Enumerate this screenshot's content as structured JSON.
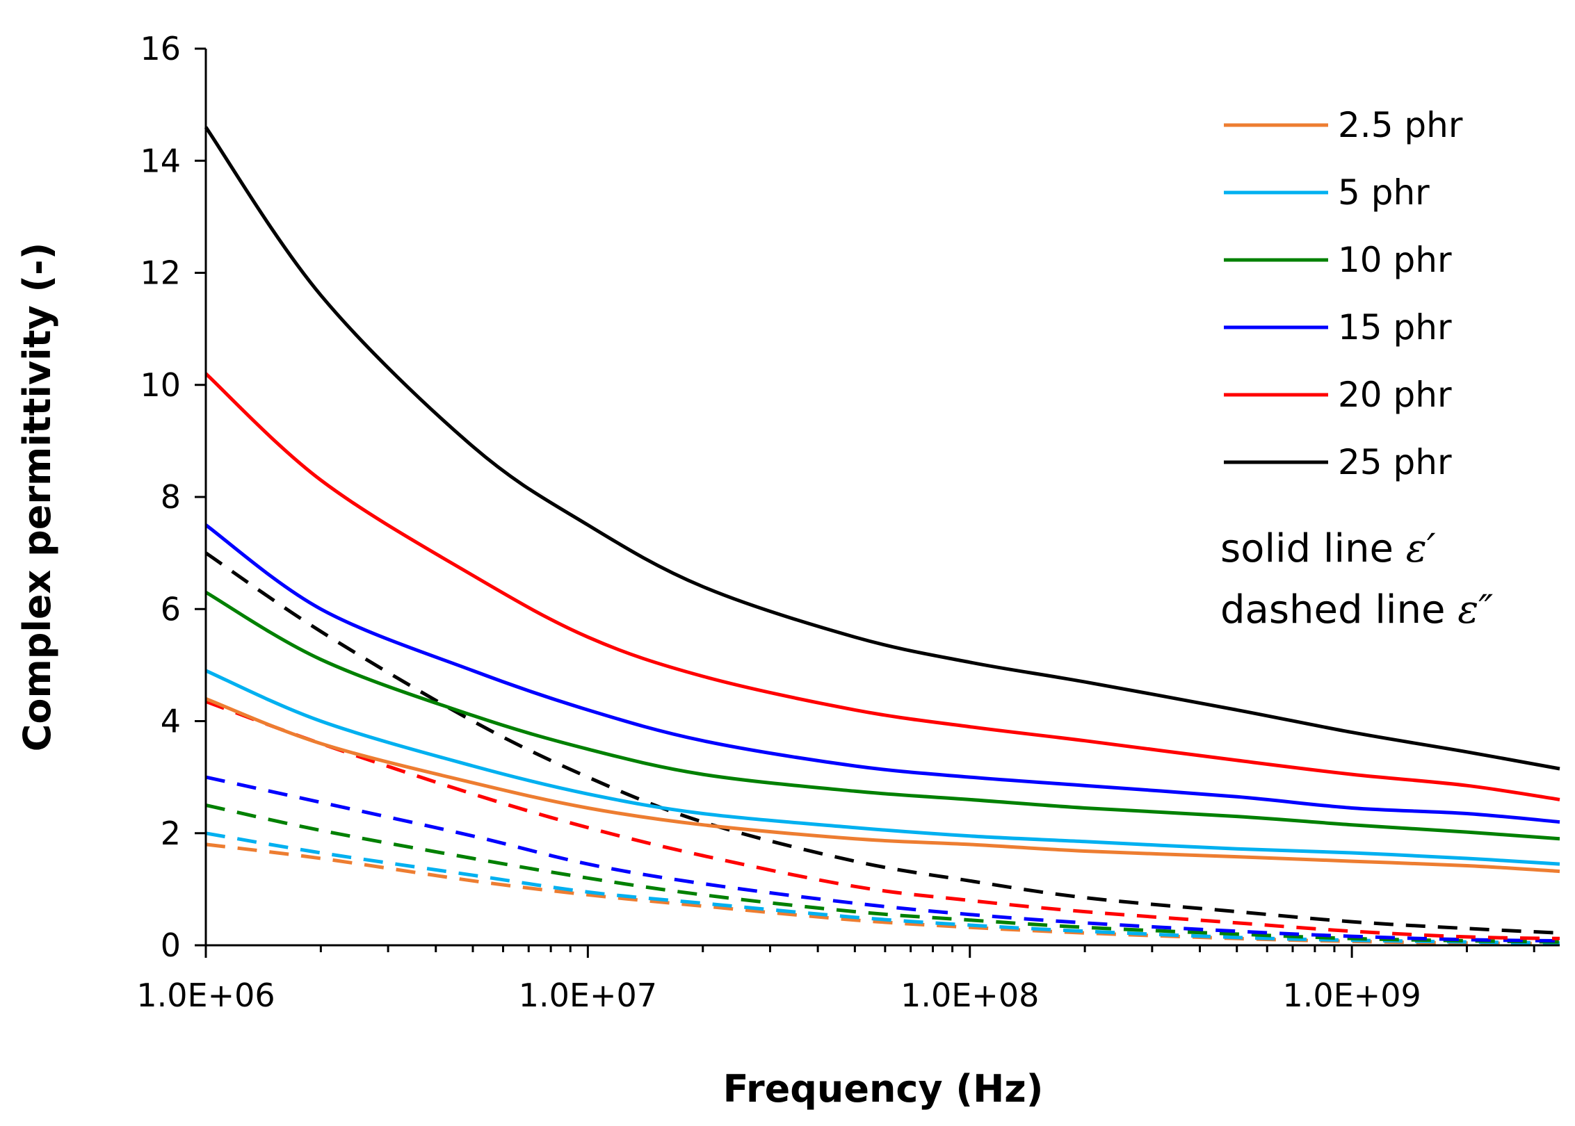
{
  "chart_data": {
    "type": "line",
    "title": "",
    "xlabel": "Frequency (Hz)",
    "ylabel": "Complex permittivity (-)",
    "xscale": "log",
    "xlim": [
      1000000,
      3500000000
    ],
    "ylim": [
      0,
      16
    ],
    "x_ticks": [
      1000000,
      10000000,
      100000000,
      1000000000
    ],
    "x_tick_labels": [
      "1.0E+06",
      "1.0E+07",
      "1.0E+08",
      "1.0E+09"
    ],
    "y_ticks": [
      0,
      2,
      4,
      6,
      8,
      10,
      12,
      14,
      16
    ],
    "y_tick_labels": [
      "0",
      "2",
      "4",
      "6",
      "8",
      "10",
      "12",
      "14",
      "16"
    ],
    "legend_position": "top-right",
    "notes": [
      {
        "text": "solid line ",
        "symbol": "ε′"
      },
      {
        "text": "dashed line ",
        "symbol": "ε″"
      }
    ],
    "x": [
      1000000,
      2000000,
      5000000,
      10000000,
      20000000,
      50000000,
      100000000,
      200000000,
      500000000,
      1000000000,
      2000000000,
      3500000000
    ],
    "series": [
      {
        "name": "2.5 phr",
        "color": "#ED7D31",
        "quantity": "ε′",
        "style": "solid",
        "values": [
          4.4,
          3.6,
          2.9,
          2.45,
          2.15,
          1.9,
          1.8,
          1.68,
          1.58,
          1.5,
          1.42,
          1.32
        ]
      },
      {
        "name": "5 phr",
        "color": "#00B0F0",
        "quantity": "ε′",
        "style": "solid",
        "values": [
          4.9,
          4.0,
          3.2,
          2.7,
          2.35,
          2.1,
          1.95,
          1.85,
          1.72,
          1.65,
          1.55,
          1.45
        ]
      },
      {
        "name": "10 phr",
        "color": "#008000",
        "quantity": "ε′",
        "style": "solid",
        "values": [
          6.3,
          5.1,
          4.1,
          3.5,
          3.05,
          2.75,
          2.6,
          2.45,
          2.3,
          2.15,
          2.02,
          1.9
        ]
      },
      {
        "name": "15 phr",
        "color": "#0000FF",
        "quantity": "ε′",
        "style": "solid",
        "values": [
          7.5,
          6.0,
          4.9,
          4.2,
          3.65,
          3.2,
          3.0,
          2.85,
          2.65,
          2.45,
          2.35,
          2.2
        ]
      },
      {
        "name": "20 phr",
        "color": "#FF0000",
        "quantity": "ε′",
        "style": "solid",
        "values": [
          10.2,
          8.3,
          6.6,
          5.5,
          4.8,
          4.2,
          3.9,
          3.65,
          3.3,
          3.05,
          2.85,
          2.6
        ]
      },
      {
        "name": "25 phr",
        "color": "#000000",
        "quantity": "ε′",
        "style": "solid",
        "values": [
          14.6,
          11.6,
          8.9,
          7.5,
          6.4,
          5.5,
          5.05,
          4.7,
          4.2,
          3.8,
          3.45,
          3.15
        ]
      },
      {
        "name": "2.5 phr",
        "color": "#ED7D31",
        "quantity": "ε″",
        "style": "dashed",
        "values": [
          1.8,
          1.55,
          1.15,
          0.9,
          0.7,
          0.45,
          0.32,
          0.22,
          0.12,
          0.07,
          0.04,
          0.03
        ]
      },
      {
        "name": "5 phr",
        "color": "#00B0F0",
        "quantity": "ε″",
        "style": "dashed",
        "values": [
          2.0,
          1.65,
          1.25,
          0.95,
          0.75,
          0.5,
          0.36,
          0.25,
          0.14,
          0.09,
          0.06,
          0.04
        ]
      },
      {
        "name": "10 phr",
        "color": "#008000",
        "quantity": "ε″",
        "style": "dashed",
        "values": [
          2.5,
          2.05,
          1.55,
          1.2,
          0.9,
          0.6,
          0.45,
          0.32,
          0.2,
          0.12,
          0.08,
          0.06
        ]
      },
      {
        "name": "15 phr",
        "color": "#0000FF",
        "quantity": "ε″",
        "style": "dashed",
        "values": [
          3.0,
          2.55,
          1.95,
          1.45,
          1.1,
          0.75,
          0.55,
          0.4,
          0.25,
          0.16,
          0.1,
          0.08
        ]
      },
      {
        "name": "20 phr",
        "color": "#FF0000",
        "quantity": "ε″",
        "style": "dashed",
        "values": [
          4.35,
          3.6,
          2.7,
          2.1,
          1.6,
          1.05,
          0.8,
          0.6,
          0.4,
          0.25,
          0.15,
          0.12
        ]
      },
      {
        "name": "25 phr",
        "color": "#000000",
        "quantity": "ε″",
        "style": "dashed",
        "values": [
          7.0,
          5.6,
          4.0,
          3.0,
          2.2,
          1.5,
          1.15,
          0.85,
          0.6,
          0.42,
          0.3,
          0.22
        ]
      }
    ]
  }
}
